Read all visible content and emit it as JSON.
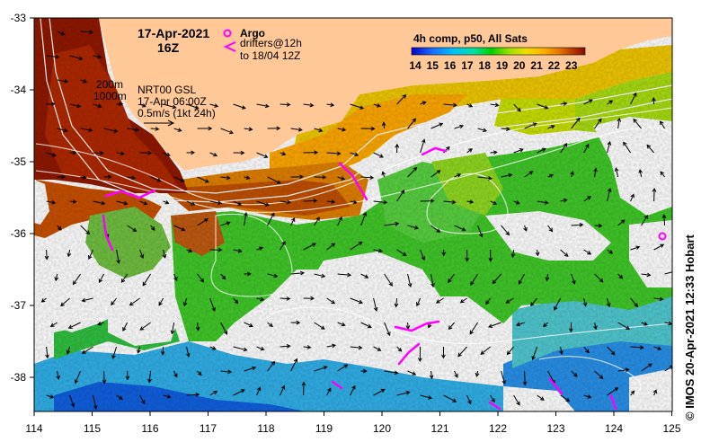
{
  "title": {
    "date": "17-Apr-2021",
    "hour": "16Z"
  },
  "legend": {
    "argo_label": "Argo",
    "drifters_line1": "drifters@12h",
    "drifters_line2": "to 18/04 12Z",
    "argo_color": "#ff00ff",
    "drifter_color": "#ff00ff"
  },
  "depth_note": {
    "contour_a": "200m",
    "contour_b": "1000m"
  },
  "current_note": {
    "line1": "NRT00 GSL",
    "line2": "17-Apr 06:00Z",
    "line3": "0.5m/s (1kt 24h)"
  },
  "colorbar": {
    "title": "4h comp, p50, All Sats",
    "ticks": [
      "14",
      "15",
      "16",
      "17",
      "18",
      "19",
      "20",
      "21",
      "22",
      "23"
    ],
    "colors": [
      "#0000cc",
      "#1a6cff",
      "#00c0ff",
      "#00e0a0",
      "#00d000",
      "#9ae000",
      "#f0e000",
      "#ffb000",
      "#e07000",
      "#b03000",
      "#801000"
    ]
  },
  "axes": {
    "lon_ticks": [
      "114",
      "115",
      "116",
      "117",
      "118",
      "119",
      "120",
      "121",
      "122",
      "123",
      "124",
      "125"
    ],
    "lat_ticks": [
      "-33",
      "-34",
      "-35",
      "-36",
      "-37",
      "-38"
    ]
  },
  "credit": "IMOS 20-Apr-2021 12:33 Hobart",
  "copyright_symbol": "©",
  "colors": {
    "land": "#ffc896",
    "nodata": "#ffffff"
  }
}
